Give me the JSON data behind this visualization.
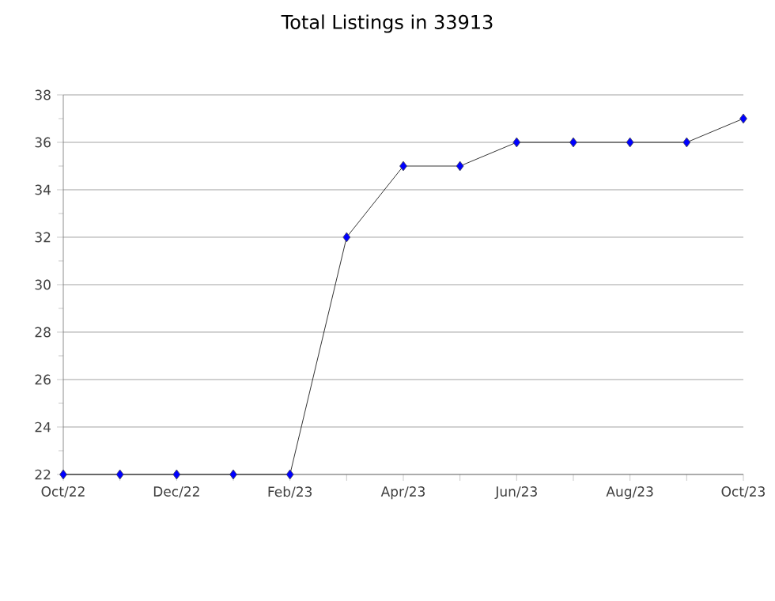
{
  "chart_data": {
    "type": "line",
    "title": "Total Listings in 33913",
    "categories": [
      "Oct/22",
      null,
      "Dec/22",
      null,
      "Feb/23",
      null,
      "Apr/23",
      null,
      "Jun/23",
      null,
      "Aug/23",
      null,
      "Oct/23"
    ],
    "series": [
      {
        "color": "#0000ff",
        "values": [
          22,
          22,
          22,
          22,
          22,
          32,
          35,
          35,
          36,
          36,
          36,
          36,
          37
        ]
      }
    ],
    "ylim": [
      22,
      38
    ],
    "yticks": [
      22,
      {
        "value": 23,
        "label": null
      },
      24,
      {
        "value": 25,
        "label": null
      },
      26,
      {
        "value": 27,
        "label": null
      },
      28,
      {
        "value": 29,
        "label": null
      },
      30,
      {
        "value": 31,
        "label": null
      },
      32,
      {
        "value": 33,
        "label": null
      },
      34,
      {
        "value": 35,
        "label": null
      },
      36,
      {
        "value": 37,
        "label": null
      },
      38
    ],
    "grid": "y",
    "marker": "diamond"
  }
}
